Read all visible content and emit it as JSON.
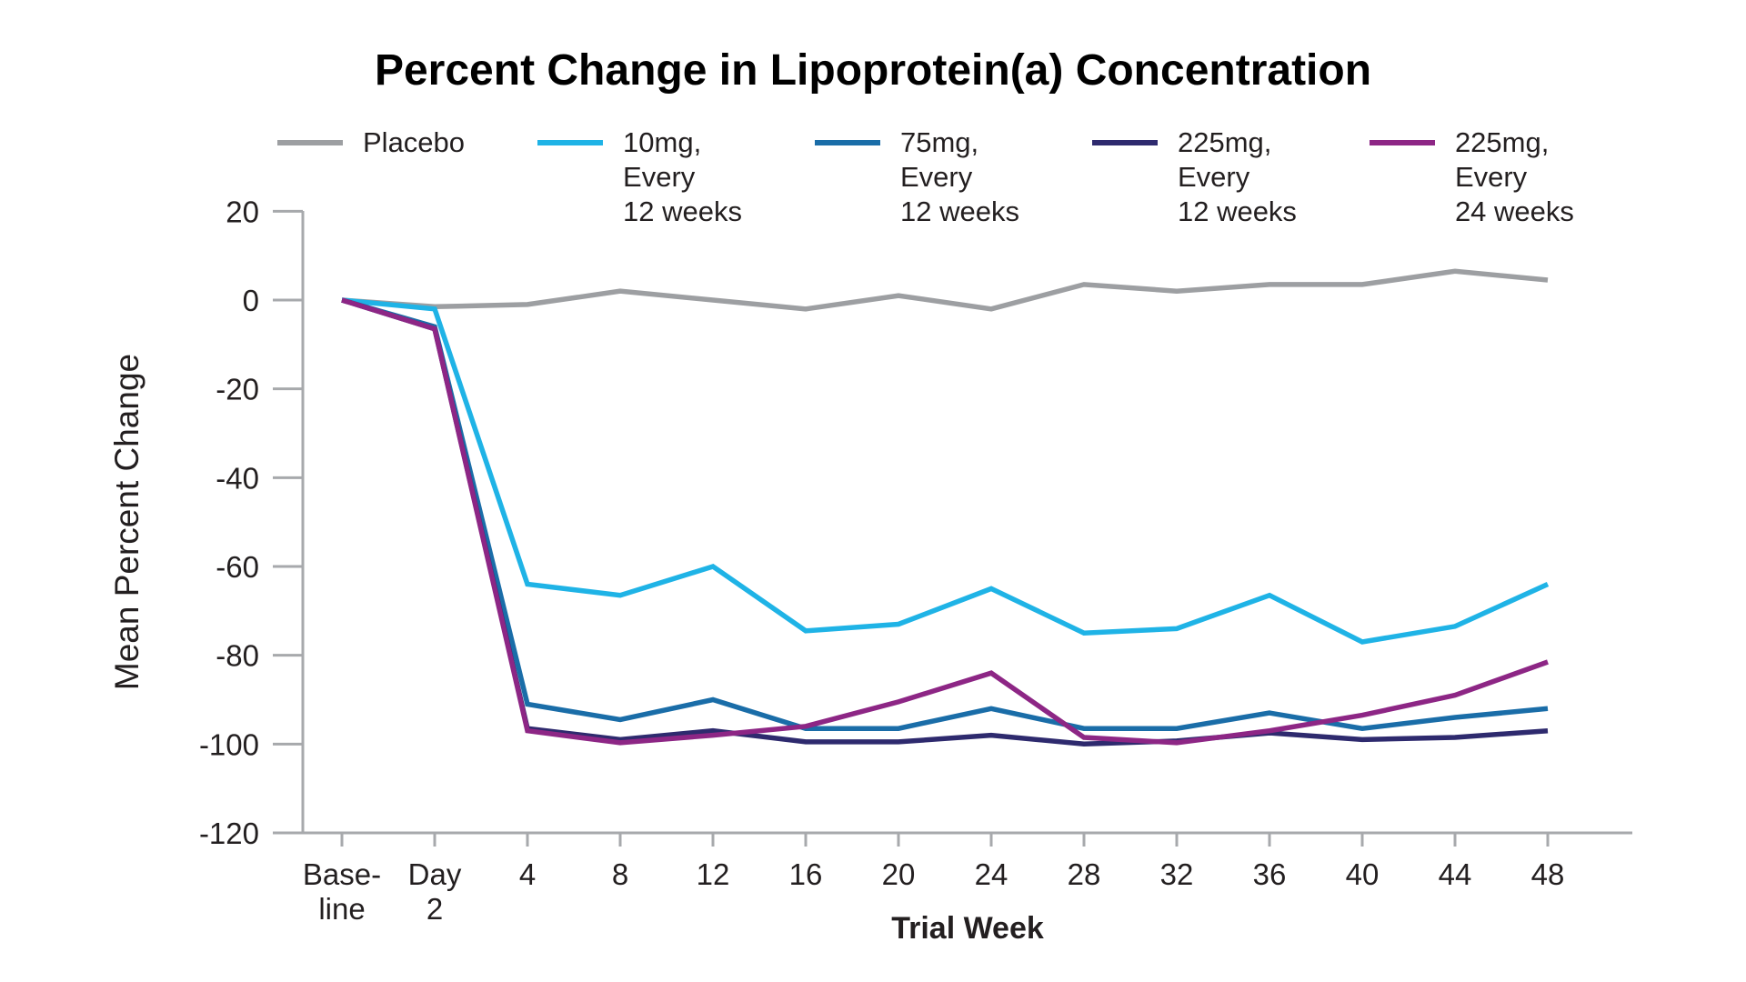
{
  "chart_data": {
    "type": "line",
    "title": "Percent Change in Lipoprotein(a) Concentration",
    "xlabel": "Trial Week",
    "ylabel": "Mean Percent Change",
    "categories": [
      "Base-\nline",
      "Day\n2",
      "4",
      "8",
      "12",
      "16",
      "20",
      "24",
      "28",
      "32",
      "36",
      "40",
      "44",
      "48"
    ],
    "ylim": [
      -120,
      20
    ],
    "y_ticks": [
      20,
      0,
      -20,
      -40,
      -60,
      -80,
      -100,
      -120
    ],
    "grid": false,
    "legend_position": "top",
    "axis_color": "#a7a9ac",
    "text_color": "#231f20",
    "series": [
      {
        "name": "Placebo",
        "color": "#9d9fa2",
        "values": [
          0,
          -1.5,
          -1,
          2,
          0,
          -2,
          1,
          -2,
          3.5,
          2,
          3.5,
          3.5,
          6.5,
          4.5
        ]
      },
      {
        "name": "10mg,\nEvery\n12 weeks",
        "color": "#1fb3e6",
        "values": [
          0,
          -2,
          -64,
          -66.5,
          -60,
          -74.5,
          -73,
          -65,
          -75,
          -74,
          -66.5,
          -77,
          -73.5,
          -64
        ]
      },
      {
        "name": "75mg,\nEvery\n12 weeks",
        "color": "#1a6da8",
        "values": [
          0,
          -6,
          -91,
          -94.5,
          -90,
          -96.5,
          -96.5,
          -92,
          -96.5,
          -96.5,
          -93,
          -96.5,
          -94,
          -92
        ]
      },
      {
        "name": "225mg,\nEvery\n12 weeks",
        "color": "#2e2a6e",
        "values": [
          0,
          -6.5,
          -96.5,
          -99,
          -97,
          -99.5,
          -99.5,
          -98,
          -100,
          -99.3,
          -97.5,
          -99,
          -98.5,
          -97
        ]
      },
      {
        "name": "225mg,\nEvery\n24 weeks",
        "color": "#8d2685",
        "values": [
          0,
          -6.5,
          -97,
          -99.7,
          -98,
          -96,
          -90.5,
          -84,
          -98.5,
          -99.7,
          -97,
          -93.5,
          -89,
          -81.5
        ]
      }
    ]
  }
}
